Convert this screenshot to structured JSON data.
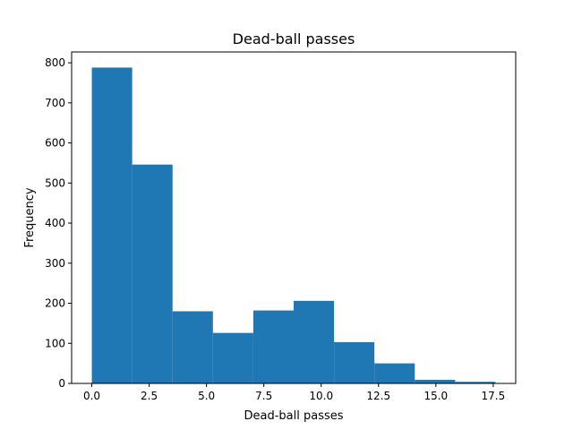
{
  "chart_data": {
    "type": "bar",
    "title": "Dead-ball passes",
    "xlabel": "Dead-ball passes",
    "ylabel": "Frequency",
    "bin_edges": [
      0.0,
      1.76,
      3.52,
      5.28,
      7.04,
      8.8,
      10.56,
      12.32,
      14.08,
      15.84,
      17.6
    ],
    "values": [
      788,
      546,
      180,
      126,
      182,
      206,
      103,
      50,
      9,
      4
    ],
    "xlim": [
      -0.88,
      18.48
    ],
    "ylim": [
      0,
      827
    ],
    "x_ticks": [
      0.0,
      2.5,
      5.0,
      7.5,
      10.0,
      12.5,
      15.0,
      17.5
    ],
    "x_tick_labels": [
      "0.0",
      "2.5",
      "5.0",
      "7.5",
      "10.0",
      "12.5",
      "15.0",
      "17.5"
    ],
    "y_ticks": [
      0,
      100,
      200,
      300,
      400,
      500,
      600,
      700,
      800
    ],
    "y_tick_labels": [
      "0",
      "100",
      "200",
      "300",
      "400",
      "500",
      "600",
      "700",
      "800"
    ],
    "grid": false,
    "bar_color": "#1f77b4"
  }
}
